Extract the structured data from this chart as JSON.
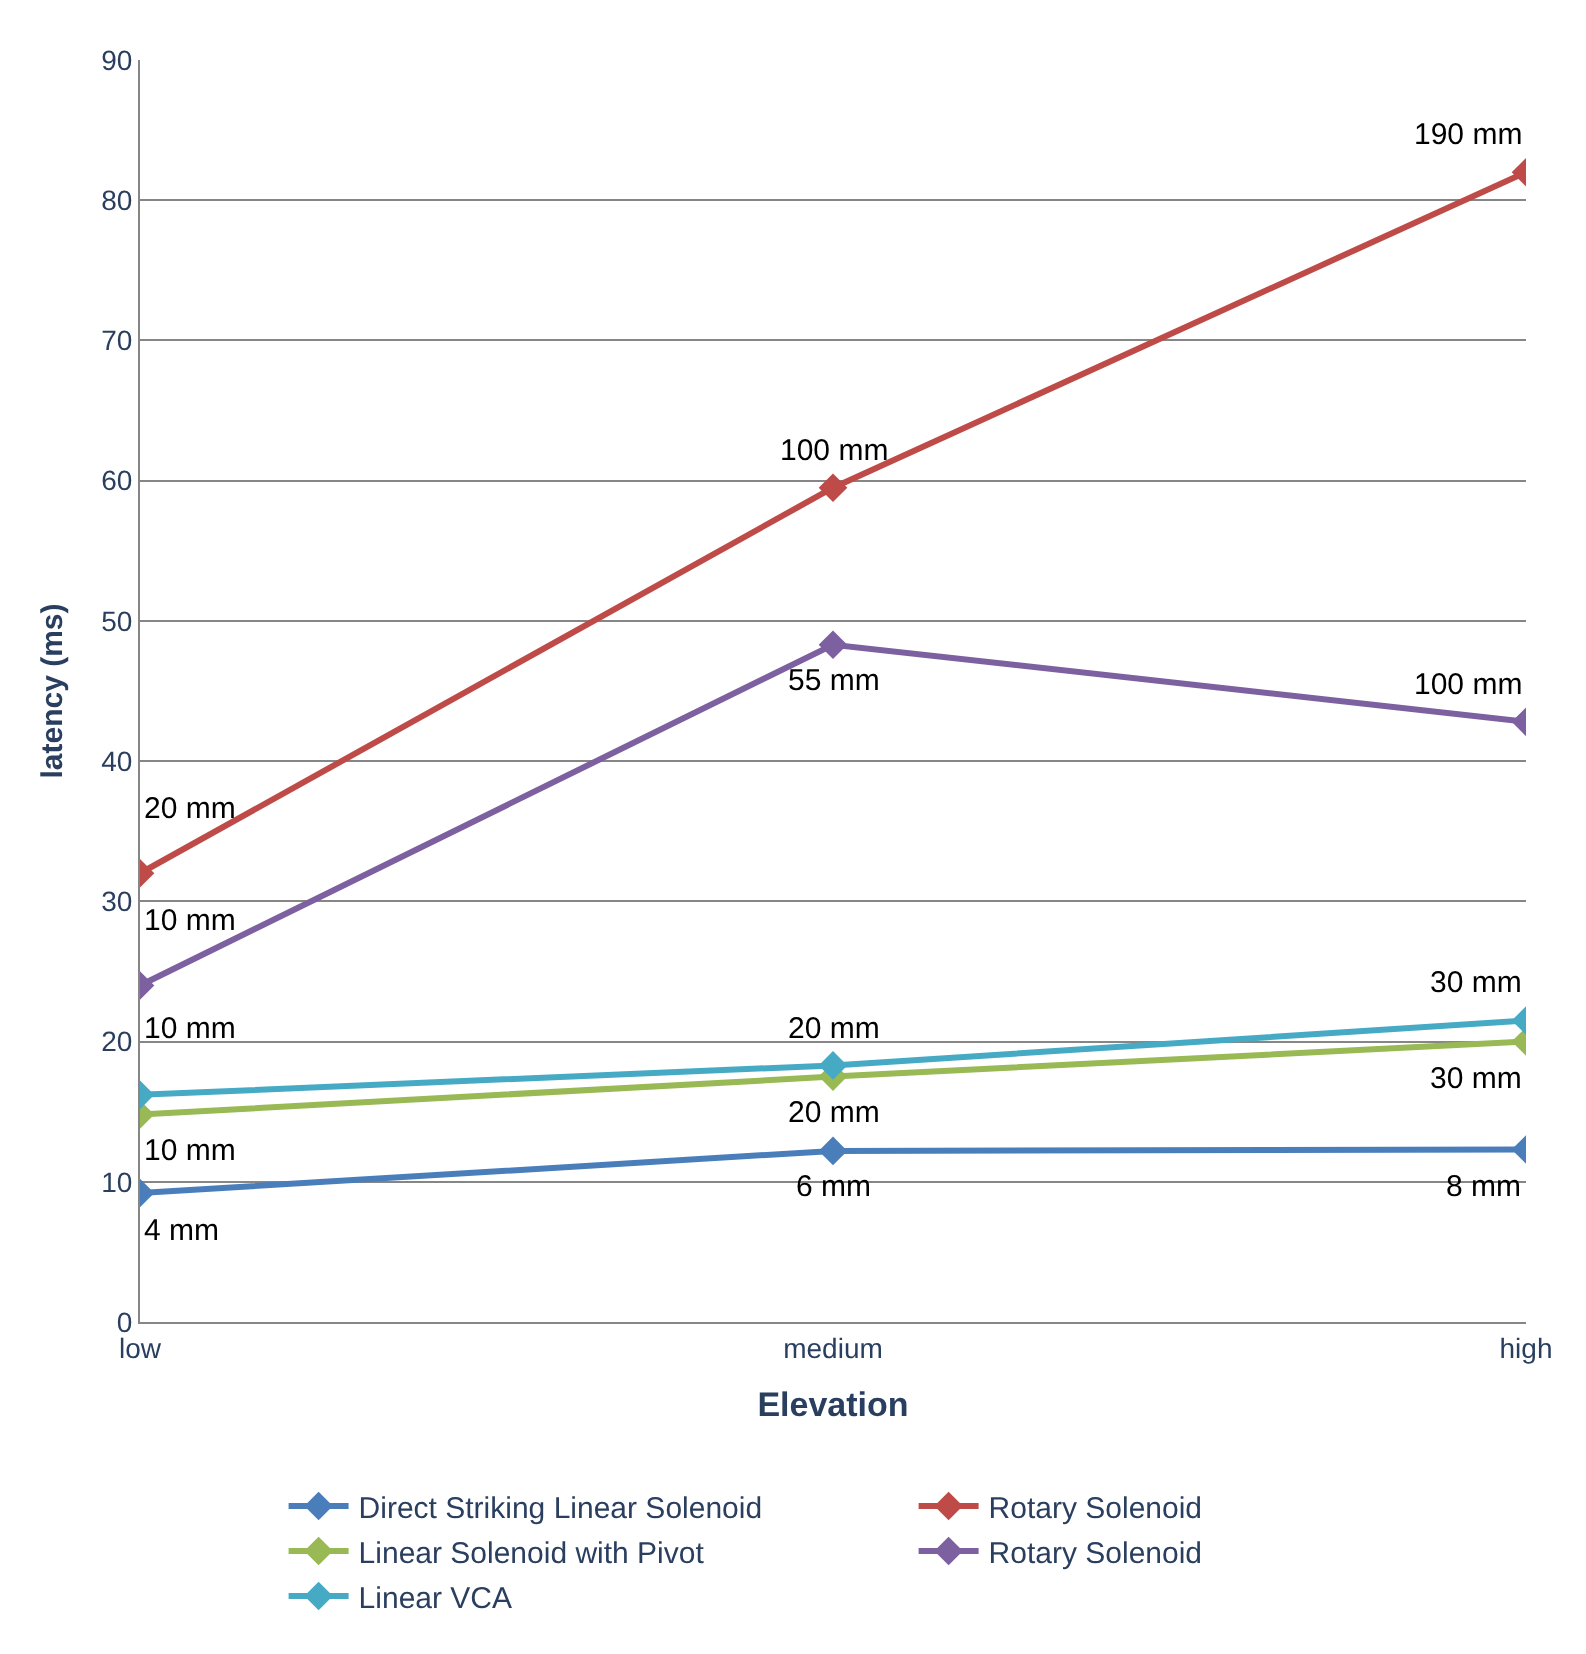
{
  "chart_data": {
    "type": "line",
    "xlabel": "Elevation",
    "ylabel": "latency (ms)",
    "categories": [
      "low",
      "medium",
      "high"
    ],
    "ylim": [
      0,
      90
    ],
    "yticks": [
      0,
      10,
      20,
      30,
      40,
      50,
      60,
      70,
      80,
      90
    ],
    "grid": "y",
    "legend": "bottom",
    "marker": "diamond",
    "line_style": "solid",
    "series": [
      {
        "name": "Direct Striking Linear Solenoid",
        "color": "#4a7ebb",
        "values": [
          9.2,
          12.2,
          12.3
        ]
      },
      {
        "name": "Rotary Solenoid",
        "color": "#be4b48",
        "values": [
          32,
          59.5,
          82
        ]
      },
      {
        "name": "Linear Solenoid with Pivot",
        "color": "#98b954",
        "values": [
          14.8,
          17.5,
          20
        ]
      },
      {
        "name": "Rotary Solenoid",
        "color": "#7d60a0",
        "values": [
          24,
          48.3,
          42.8
        ]
      },
      {
        "name": "Linear VCA",
        "color": "#46aac5",
        "values": [
          16.2,
          18.3,
          21.5
        ]
      }
    ],
    "annotations": [
      {
        "text": "4 mm",
        "x": "low",
        "y": 9.2
      },
      {
        "text": "6 mm",
        "x": "medium",
        "y": 12.2
      },
      {
        "text": "8 mm",
        "x": "high",
        "y": 12.3
      },
      {
        "text": "20 mm",
        "x": "low",
        "y": 32
      },
      {
        "text": "100 mm",
        "x": "medium",
        "y": 59.5
      },
      {
        "text": "190 mm",
        "x": "high",
        "y": 82
      },
      {
        "text": "10 mm",
        "x": "low",
        "y": 14.8
      },
      {
        "text": "20 mm",
        "x": "medium",
        "y": 17.5
      },
      {
        "text": "30 mm",
        "x": "high",
        "y": 20
      },
      {
        "text": "10 mm",
        "x": "low",
        "y": 24
      },
      {
        "text": "55 mm",
        "x": "medium",
        "y": 48.3
      },
      {
        "text": "100 mm",
        "x": "high",
        "y": 42.8
      },
      {
        "text": "10 mm",
        "x": "low",
        "y": 16.2
      },
      {
        "text": "20 mm",
        "x": "medium",
        "y": 18.3
      },
      {
        "text": "30 mm",
        "x": "high",
        "y": 21.5
      }
    ]
  }
}
